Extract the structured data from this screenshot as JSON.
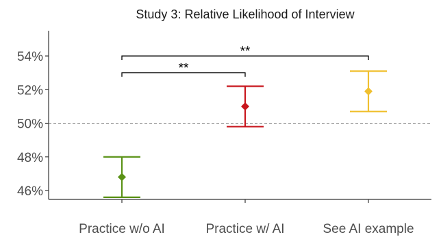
{
  "chart_data": {
    "type": "errorbar",
    "title": "Study 3: Relative Likelihood of Interview",
    "xlabel": "",
    "ylabel": "",
    "categories": [
      "Practice w/o AI",
      "Practice w/ AI",
      "See AI example"
    ],
    "ylim": [
      44.5,
      55.5
    ],
    "yticks": [
      46,
      48,
      50,
      52,
      54
    ],
    "ytick_labels": [
      "46%",
      "48%",
      "50%",
      "52%",
      "54%"
    ],
    "grid": false,
    "reference_line": {
      "y": 50,
      "style": "dashed",
      "color": "#8c8c8c"
    },
    "series": [
      {
        "points": [
          {
            "category": "Practice w/o AI",
            "value": 46.8,
            "lower": 45.6,
            "upper": 48.0,
            "color": "#5a9216"
          },
          {
            "category": "Practice w/ AI",
            "value": 51.0,
            "lower": 49.8,
            "upper": 52.2,
            "color": "#c8161d"
          },
          {
            "category": "See AI example",
            "value": 51.9,
            "lower": 50.7,
            "upper": 53.1,
            "color": "#f0c030"
          }
        ]
      }
    ],
    "significance": [
      {
        "from": "Practice w/o AI",
        "to": "Practice w/ AI",
        "label": "**",
        "y": 53.0
      },
      {
        "from": "Practice w/o AI",
        "to": "See AI example",
        "label": "**",
        "y": 54.0
      }
    ]
  }
}
